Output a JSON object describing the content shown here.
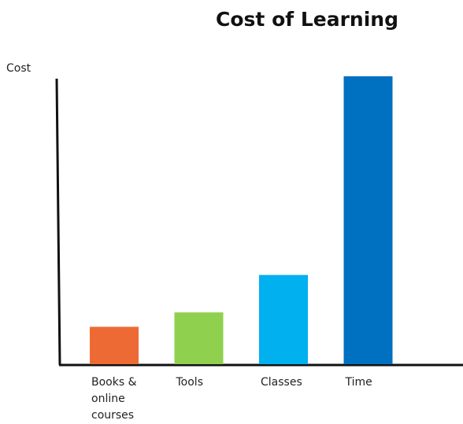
{
  "chart_data": {
    "type": "bar",
    "title": "Cost of Learning",
    "y_label": "Cost",
    "categories": [
      "Books & online courses",
      "Tools",
      "Classes",
      "Time"
    ],
    "values": [
      13,
      18,
      31,
      100
    ],
    "colors": [
      "#ee6a35",
      "#8fd14f",
      "#00b0ef",
      "#0070c0"
    ],
    "ylim": [
      0,
      100
    ]
  }
}
